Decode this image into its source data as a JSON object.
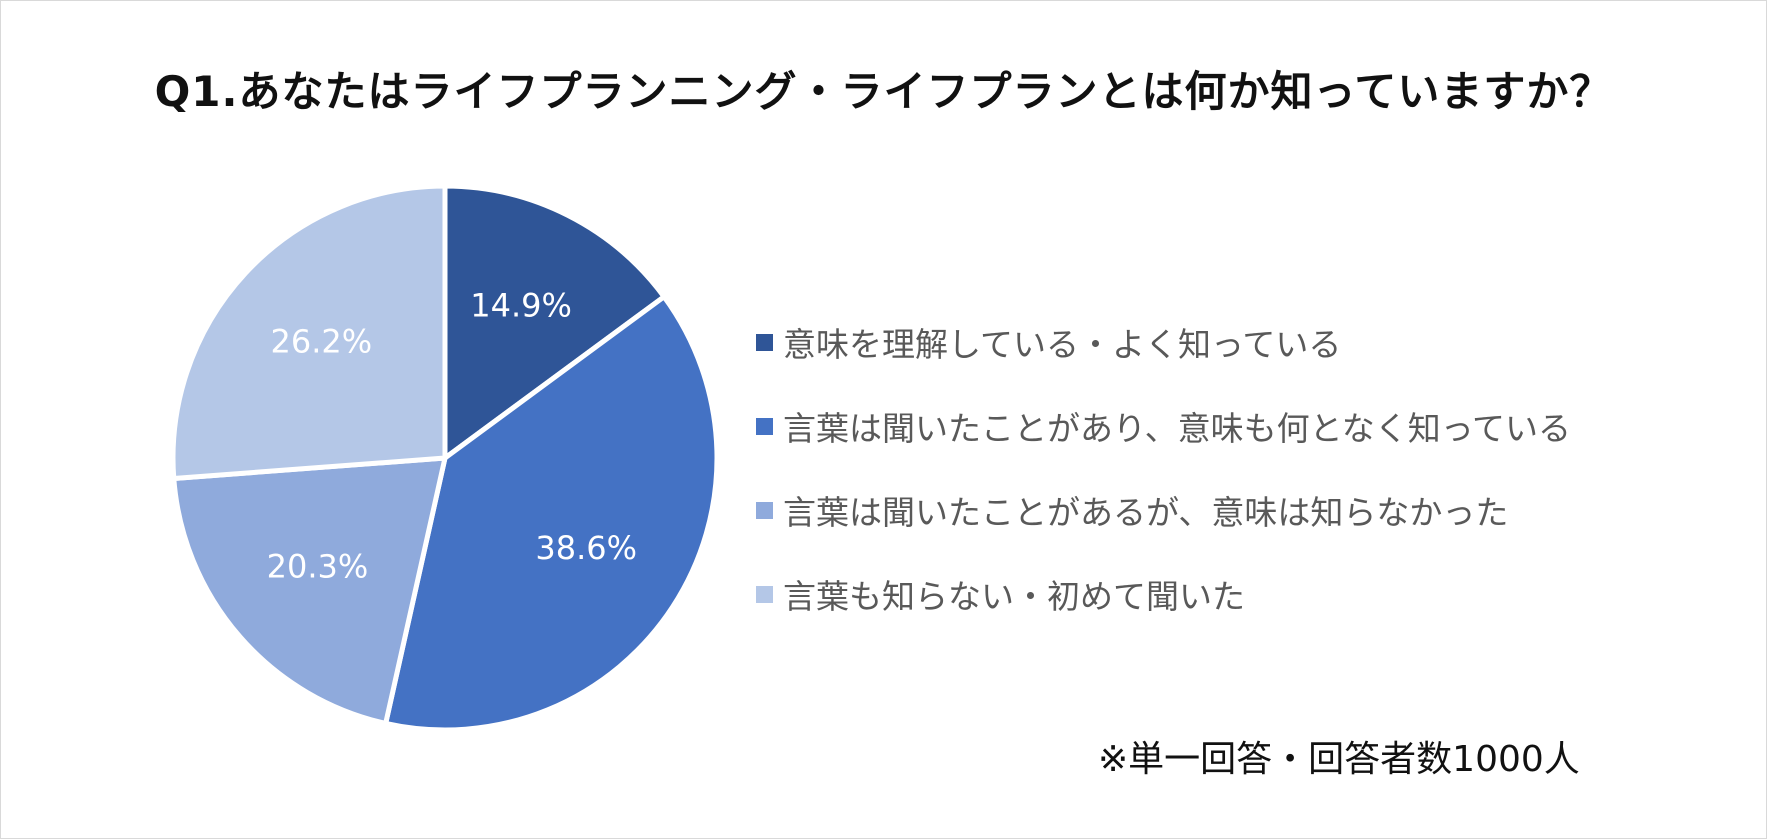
{
  "chart_data": {
    "type": "pie",
    "title": "Q1.あなたはライフプランニング・ライフプランとは何か知っていますか？",
    "unit": "%",
    "slices": [
      {
        "label": "意味を理解している・よく知っている",
        "value": 14.9,
        "value_label": "14.9%",
        "color": "#2F5597"
      },
      {
        "label": "言葉は聞いたことがあり、意味も何となく知っている",
        "value": 38.6,
        "value_label": "38.6%",
        "color": "#4472C4"
      },
      {
        "label": "言葉は聞いたことがあるが、意味は知らなかった",
        "value": 20.3,
        "value_label": "20.3%",
        "color": "#8FAADC"
      },
      {
        "label": "言葉も知らない・初めて聞いた",
        "value": 26.2,
        "value_label": "26.2%",
        "color": "#B4C7E7"
      }
    ],
    "start": "12 o'clock",
    "direction": "clockwise",
    "legend_position": "right"
  },
  "footnote": "※単一回答・回答者数1000人"
}
